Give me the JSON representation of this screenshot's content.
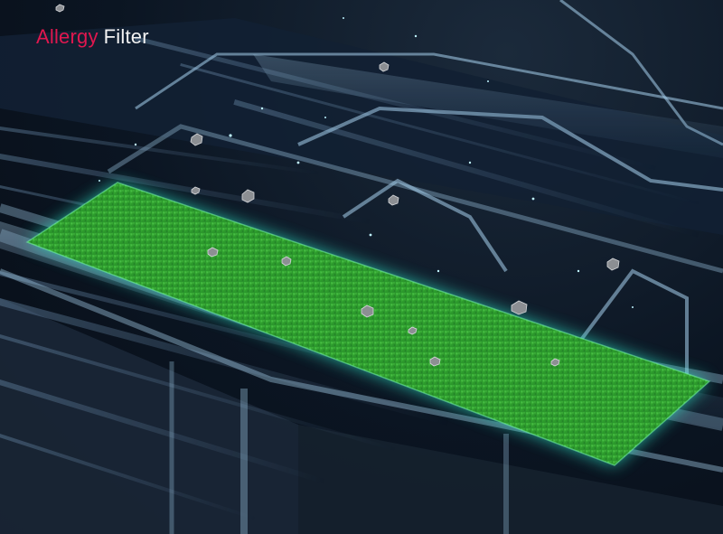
{
  "headline": {
    "accent_word": "Allergy",
    "plain_word": "Filter"
  },
  "colors": {
    "accent": "#e0174f",
    "text": "#f2f2f2",
    "filter_green": "#2f9a2c",
    "glow": "#2fe3c6",
    "duct_light": "#9ec9e6",
    "background": "#0b1522"
  }
}
